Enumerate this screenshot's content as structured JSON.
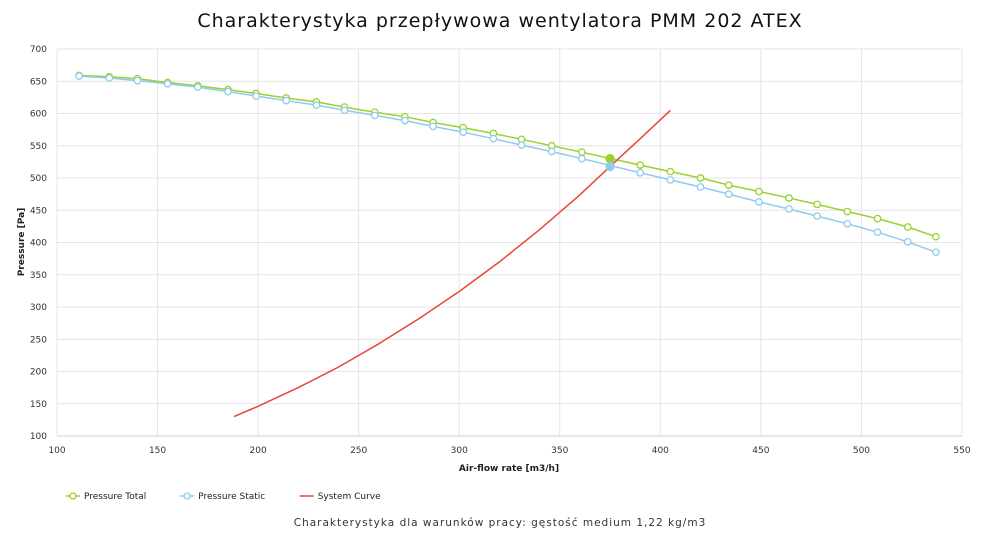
{
  "chart_data": {
    "type": "line",
    "title": "Charakterystyka przepływowa wentylatora PMM 202 ATEX",
    "xlabel": "Air-flow rate [m3/h]",
    "ylabel": "Pressure [Pa]",
    "xlim": [
      100,
      550
    ],
    "ylim": [
      100,
      700
    ],
    "xticks": [
      100,
      150,
      200,
      250,
      300,
      350,
      400,
      450,
      500,
      550
    ],
    "yticks": [
      100,
      150,
      200,
      250,
      300,
      350,
      400,
      450,
      500,
      550,
      600,
      650,
      700
    ],
    "grid": true,
    "legend_position": "bottom-left",
    "caption": "Charakterystyka dla warunków pracy: gęstość medium 1,22 kg/m3",
    "series": [
      {
        "name": "Pressure Total",
        "color": "#9bd12f",
        "marker": "circle",
        "x": [
          111,
          126,
          140,
          155,
          170,
          185,
          199,
          214,
          229,
          243,
          258,
          273,
          287,
          302,
          317,
          331,
          346,
          361,
          390,
          405,
          420,
          434,
          449,
          464,
          478,
          493,
          508,
          523,
          537
        ],
        "y": [
          659,
          657,
          654,
          648,
          643,
          637,
          631,
          624,
          618,
          610,
          602,
          595,
          586,
          578,
          569,
          560,
          550,
          540,
          520,
          510,
          500,
          489,
          479,
          469,
          459,
          448,
          437,
          424,
          409
        ]
      },
      {
        "name": "Pressure Static",
        "color": "#8fcbef",
        "marker": "circle",
        "x": [
          111,
          126,
          140,
          155,
          170,
          185,
          199,
          214,
          229,
          243,
          258,
          273,
          287,
          302,
          317,
          331,
          346,
          361,
          390,
          405,
          420,
          434,
          449,
          464,
          478,
          493,
          508,
          523,
          537
        ],
        "y": [
          658,
          655,
          651,
          646,
          641,
          634,
          627,
          620,
          613,
          605,
          597,
          589,
          580,
          571,
          561,
          551,
          541,
          530,
          508,
          497,
          486,
          475,
          463,
          452,
          441,
          429,
          416,
          401,
          385
        ]
      },
      {
        "name": "System Curve",
        "color": "#e8453c",
        "marker": "none",
        "x": [
          188,
          200,
          220,
          240,
          260,
          280,
          300,
          320,
          340,
          360,
          375,
          390,
          405
        ],
        "y": [
          130,
          146,
          175,
          207,
          243,
          282,
          324,
          370,
          420,
          474,
          518,
          561,
          605
        ]
      }
    ],
    "operating_points": [
      {
        "x": 375,
        "y": 530,
        "color": "#9bd12f"
      },
      {
        "x": 375,
        "y": 518,
        "color": "#8fcbef"
      }
    ]
  }
}
